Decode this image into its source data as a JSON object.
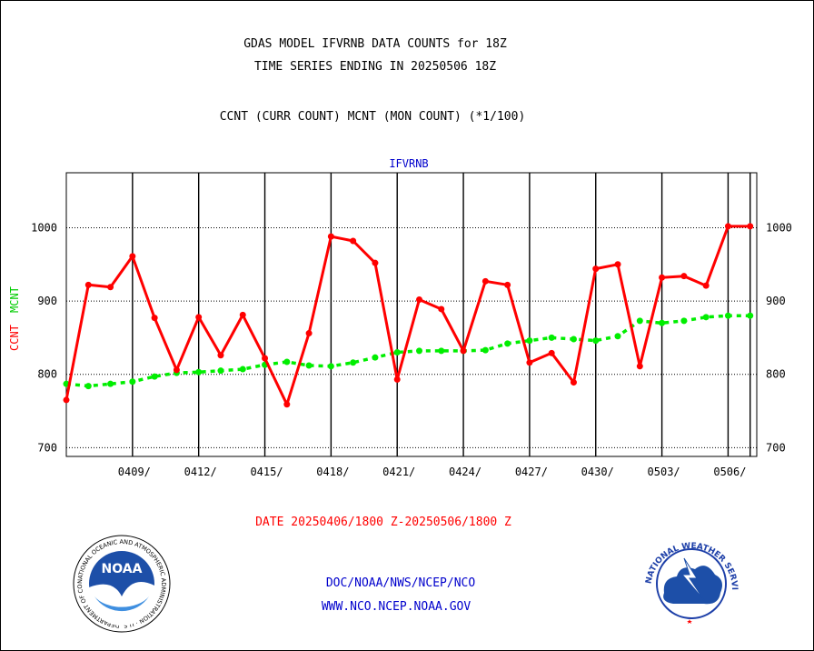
{
  "titles": {
    "line1": "GDAS MODEL IFVRNB DATA COUNTS for 18Z",
    "line2": "TIME SERIES ENDING IN 20250506 18Z",
    "line3": "CCNT (CURR COUNT) MCNT (MON COUNT) (*1/100)"
  },
  "date_range": "DATE 20250406/1800 Z-20250506/1800 Z",
  "footer": {
    "line1": "DOC/NOAA/NWS/NCEP/NCO",
    "line2": "WWW.NCO.NCEP.NOAA.GOV"
  },
  "logos": {
    "noaa_text": "NOAA",
    "noaa_ring": "NATIONAL OCEANIC AND ATMOSPHERIC ADMINISTRATION · U.S. DEPARTMENT OF COMMERCE",
    "nws_ring": "NATIONAL WEATHER SERVICE"
  },
  "colors": {
    "ccnt": "#ff0000",
    "mcnt": "#00ee00",
    "label_blue": "#0000cc",
    "date_red": "#ff0000"
  },
  "chart_data": {
    "type": "line",
    "title": "IFVRNB",
    "ylabel_ccnt": "CCNT",
    "ylabel_mcnt": "MCNT",
    "ylim": [
      688,
      1075
    ],
    "yticks": [
      700,
      800,
      900,
      1000
    ],
    "xlim": [
      0,
      31.3
    ],
    "x_tick_labels": [
      "0409/",
      "0412/",
      "0415/",
      "0418/",
      "0421/",
      "0424/",
      "0427/",
      "0430/",
      "0503/",
      "0506/"
    ],
    "x_tick_positions": [
      3,
      6,
      9,
      12,
      15,
      18,
      21,
      24,
      27,
      30
    ],
    "grid": true,
    "series": [
      {
        "name": "CCNT",
        "x": [
          0,
          1,
          2,
          3,
          4,
          5,
          6,
          7,
          8,
          9,
          10,
          11,
          12,
          13,
          14,
          15,
          16,
          17,
          18,
          19,
          20,
          21,
          22,
          23,
          24,
          25,
          26,
          27,
          28,
          29,
          30,
          31
        ],
        "values": [
          765,
          922,
          919,
          961,
          877,
          806,
          878,
          826,
          881,
          822,
          759,
          856,
          988,
          982,
          952,
          793,
          902,
          889,
          832,
          927,
          922,
          816,
          829,
          789,
          944,
          950,
          811,
          932,
          934,
          921,
          1002,
          1002
        ]
      },
      {
        "name": "MCNT",
        "x": [
          0,
          1,
          2,
          3,
          4,
          5,
          6,
          7,
          8,
          9,
          10,
          11,
          12,
          13,
          14,
          15,
          16,
          17,
          18,
          19,
          20,
          21,
          22,
          23,
          24,
          25,
          26,
          27,
          28,
          29,
          30,
          31
        ],
        "values": [
          787,
          784,
          787,
          790,
          797,
          802,
          803,
          805,
          807,
          813,
          817,
          812,
          811,
          816,
          823,
          830,
          832,
          832,
          832,
          833,
          842,
          846,
          850,
          848,
          846,
          852,
          873,
          870,
          873,
          878,
          880,
          880
        ]
      }
    ]
  }
}
